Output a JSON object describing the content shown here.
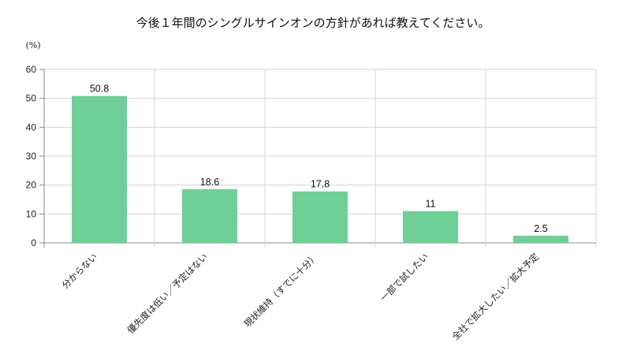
{
  "chart_data": {
    "type": "bar",
    "title": "今後１年間のシングルサインオンの方針があれば教えてください。",
    "unit_label": "(%)",
    "categories": [
      "分からない",
      "優先度は低い／予定はない",
      "現状維持（すでに十分）",
      "一部で試したい",
      "全社で拡大したい／拡大予定"
    ],
    "values": [
      50.8,
      18.6,
      17.8,
      11,
      2.5
    ],
    "data_labels": [
      "50.8",
      "18.6",
      "17.8",
      "11",
      "2.5"
    ],
    "ylim": [
      0,
      60
    ],
    "yticks": [
      0,
      10,
      20,
      30,
      40,
      50,
      60
    ],
    "grid": true,
    "legend": "none",
    "colors": {
      "bar": "#6fcf97",
      "grid": "#d4d4d4",
      "axis": "#888888"
    }
  }
}
